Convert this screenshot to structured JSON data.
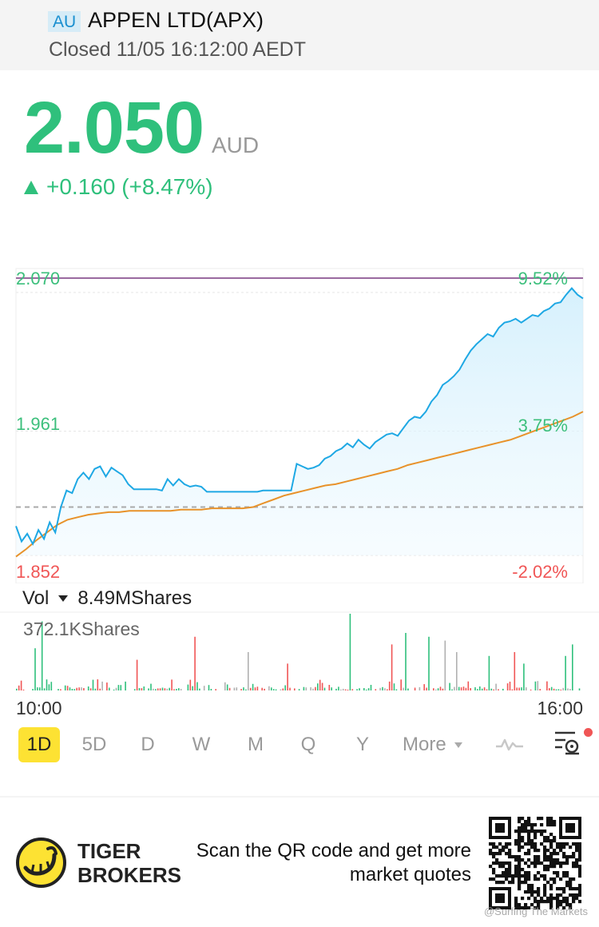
{
  "header": {
    "market_badge": "AU",
    "title": "APPEN LTD(APX)",
    "status": "Closed 11/05 16:12:00 AEDT"
  },
  "quote": {
    "price": "2.050",
    "currency": "AUD",
    "change": "+0.160 (+8.47%)",
    "direction": "up"
  },
  "colors": {
    "up_green": "#2fc07c",
    "down_red": "#f05555",
    "price_line": "#1ea8e4",
    "avg_line": "#e8922a",
    "high_line": "#9a6aa0",
    "accent_yellow": "#fde233"
  },
  "chart_data": {
    "type": "line",
    "title": "",
    "xlabel": "",
    "ylabel": "",
    "x_start_label": "10:00",
    "x_end_label": "16:00",
    "ylim": [
      1.852,
      2.07
    ],
    "y_labels": {
      "top": "2.070",
      "middle": "1.961",
      "bottom": "1.852"
    },
    "pct_labels": {
      "top": "9.52%",
      "middle": "3.75%",
      "bottom": "-2.02%"
    },
    "previous_close": 1.89,
    "series": [
      {
        "values": [
          1.875,
          1.863,
          1.869,
          1.861,
          1.872,
          1.865,
          1.878,
          1.87,
          1.89,
          1.903,
          1.901,
          1.912,
          1.917,
          1.912,
          1.92,
          1.922,
          1.914,
          1.921,
          1.918,
          1.915,
          1.908,
          1.904,
          1.904,
          1.904,
          1.904,
          1.904,
          1.903,
          1.912,
          1.907,
          1.912,
          1.908,
          1.906,
          1.907,
          1.906,
          1.902,
          1.902,
          1.902,
          1.902,
          1.902,
          1.902,
          1.902,
          1.902,
          1.902,
          1.902,
          1.903,
          1.903,
          1.903,
          1.903,
          1.903,
          1.903,
          1.924,
          1.922,
          1.92,
          1.921,
          1.923,
          1.928,
          1.93,
          1.934,
          1.936,
          1.94,
          1.937,
          1.943,
          1.939,
          1.936,
          1.941,
          1.944,
          1.947,
          1.948,
          1.946,
          1.952,
          1.958,
          1.961,
          1.96,
          1.965,
          1.973,
          1.978,
          1.986,
          1.989,
          1.993,
          1.998,
          2.006,
          2.013,
          2.018,
          2.022,
          2.026,
          2.024,
          2.031,
          2.035,
          2.036,
          2.038,
          2.035,
          2.038,
          2.041,
          2.04,
          2.044,
          2.046,
          2.05,
          2.051,
          2.057,
          2.062,
          2.057,
          2.054
        ]
      },
      {
        "values": [
          1.851,
          1.857,
          1.864,
          1.87,
          1.876,
          1.88,
          1.882,
          1.884,
          1.885,
          1.886,
          1.886,
          1.887,
          1.887,
          1.887,
          1.887,
          1.887,
          1.888,
          1.888,
          1.888,
          1.889,
          1.889,
          1.889,
          1.889,
          1.89,
          1.893,
          1.896,
          1.899,
          1.901,
          1.903,
          1.905,
          1.907,
          1.908,
          1.91,
          1.912,
          1.914,
          1.916,
          1.918,
          1.92,
          1.923,
          1.925,
          1.927,
          1.929,
          1.931,
          1.933,
          1.935,
          1.937,
          1.939,
          1.941,
          1.943,
          1.946,
          1.949,
          1.952,
          1.955,
          1.958,
          1.961,
          1.965
        ]
      }
    ],
    "volume": {
      "label": "Vol",
      "total": "8.49MShares",
      "max_label": "372.1KShares"
    }
  },
  "periods": [
    {
      "label": "1D",
      "active": true
    },
    {
      "label": "5D",
      "active": false
    },
    {
      "label": "D",
      "active": false
    },
    {
      "label": "W",
      "active": false
    },
    {
      "label": "M",
      "active": false
    },
    {
      "label": "Q",
      "active": false
    },
    {
      "label": "Y",
      "active": false
    },
    {
      "label": "More",
      "active": false
    }
  ],
  "icons": [
    "chart-line-toggle-icon",
    "indicator-settings-icon",
    "dropdown-caret-icon",
    "tiger-logo-icon",
    "qr-code-icon"
  ],
  "footer": {
    "brand_line1": "TIGER",
    "brand_line2": "BROKERS",
    "promo_line1": "Scan the QR code and get more",
    "promo_line2": "market quotes",
    "watermark": "@Surfing The Markets"
  }
}
